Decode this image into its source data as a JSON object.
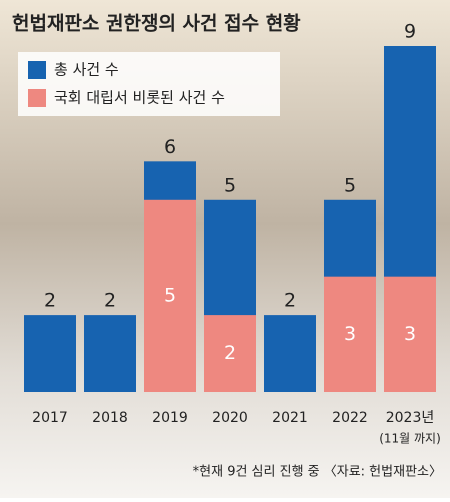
{
  "chart_data": {
    "type": "bar",
    "title": "헌법재판소 권한쟁의 사건 접수 현황",
    "categories": [
      "2017",
      "2018",
      "2019",
      "2020",
      "2021",
      "2022",
      "2023년"
    ],
    "category_note": "(11월 까지)",
    "series": [
      {
        "name": "총 사건 수",
        "color": "#1763b0",
        "values": [
          2,
          2,
          6,
          5,
          2,
          5,
          9
        ]
      },
      {
        "name": "국회 대립서 비롯된 사건 수",
        "color": "#ee8880",
        "values": [
          null,
          null,
          5,
          2,
          null,
          3,
          3
        ]
      }
    ],
    "ylim": [
      0,
      9
    ],
    "footnote": "*현재 9건 심리 진행 중  〈자료: 헌법재판소〉"
  }
}
